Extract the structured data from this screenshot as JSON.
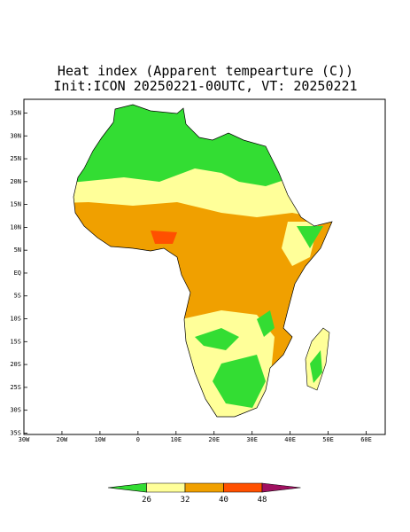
{
  "map": {
    "title": "Heat index (Apparent tempearture (C))",
    "subtitle": "Init:ICON 20250221-00UTC, VT: 20250221",
    "lon_lim": [
      -30,
      65
    ],
    "lat_lim": [
      -35.3,
      38
    ],
    "lat_ticks": [
      {
        "value": 35,
        "label": "35N"
      },
      {
        "value": 30,
        "label": "30N"
      },
      {
        "value": 25,
        "label": "25N"
      },
      {
        "value": 20,
        "label": "20N"
      },
      {
        "value": 15,
        "label": "15N"
      },
      {
        "value": 10,
        "label": "10N"
      },
      {
        "value": 5,
        "label": "5N"
      },
      {
        "value": 0,
        "label": "EQ"
      },
      {
        "value": -5,
        "label": "5S"
      },
      {
        "value": -10,
        "label": "10S"
      },
      {
        "value": -15,
        "label": "15S"
      },
      {
        "value": -20,
        "label": "20S"
      },
      {
        "value": -25,
        "label": "25S"
      },
      {
        "value": -30,
        "label": "30S"
      },
      {
        "value": -35,
        "label": "35S"
      }
    ],
    "lon_ticks": [
      {
        "value": -30,
        "label": "30W"
      },
      {
        "value": -20,
        "label": "20W"
      },
      {
        "value": -10,
        "label": "10W"
      },
      0,
      {
        "value": 10,
        "label": "10E"
      },
      {
        "value": 20,
        "label": "20E"
      },
      {
        "value": 30,
        "label": "30E"
      },
      {
        "value": 40,
        "label": "40E"
      },
      {
        "value": 50,
        "label": "50E"
      },
      {
        "value": 60,
        "label": "60E"
      }
    ]
  },
  "colorbar": {
    "levels": [
      26,
      32,
      40,
      48
    ],
    "colors": [
      "#33dd33",
      "#ffff99",
      "#f0a000",
      "#ff5000",
      "#a01060"
    ]
  }
}
